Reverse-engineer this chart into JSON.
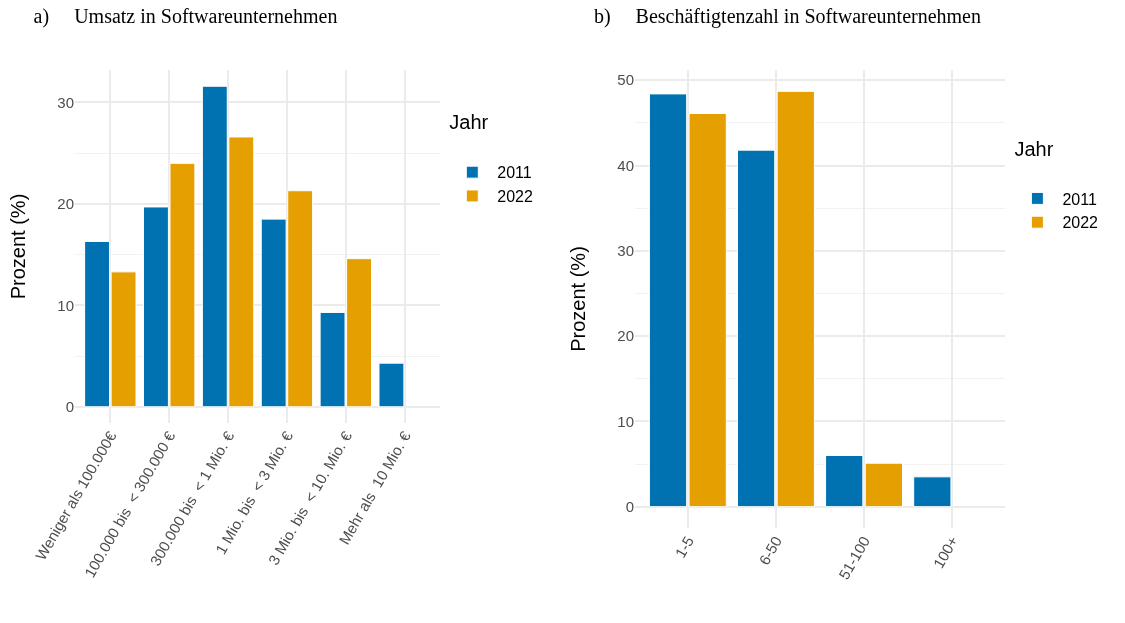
{
  "chart_data": [
    {
      "type": "bar",
      "title": "a)     Umsatz in Softwareunternehmen",
      "ylabel": "Prozent (%)",
      "legend_title": "Jahr",
      "legend": "right",
      "grid": true,
      "categories": [
        "Weniger als 100.000€",
        "100.000 bis  < 300.000 €",
        "300.000 bis  < 1 Mio. €",
        "1 Mio. bis  < 3 Mio. €",
        "3 Mio. bis  < 10. Mio. €",
        "Mehr als  10 Mio. €"
      ],
      "series": [
        {
          "name": "2011",
          "color": "#0072b2",
          "values": [
            16.3,
            19.7,
            31.6,
            18.5,
            9.3,
            4.3
          ]
        },
        {
          "name": "2022",
          "color": "#e69f00",
          "values": [
            13.3,
            24.0,
            26.6,
            21.3,
            14.6,
            null
          ]
        }
      ],
      "ylim": [
        -1.6,
        33.2
      ],
      "yticks": [
        0,
        10,
        20,
        30
      ]
    },
    {
      "type": "bar",
      "title": "b)     Beschäftigtenzahl in Softwareunternehmen",
      "ylabel": "Prozent (%)",
      "legend_title": "Jahr",
      "legend": "right",
      "grid": true,
      "categories": [
        "1-5",
        "6-50",
        "51-100",
        "100+"
      ],
      "series": [
        {
          "name": "2011",
          "color": "#0072b2",
          "values": [
            48.4,
            41.8,
            6.0,
            3.5
          ]
        },
        {
          "name": "2022",
          "color": "#e69f00",
          "values": [
            46.1,
            48.7,
            5.1,
            null
          ]
        }
      ],
      "ylim": [
        -2.5,
        51.2
      ],
      "yticks": [
        0,
        10,
        20,
        30,
        40,
        50
      ]
    }
  ]
}
